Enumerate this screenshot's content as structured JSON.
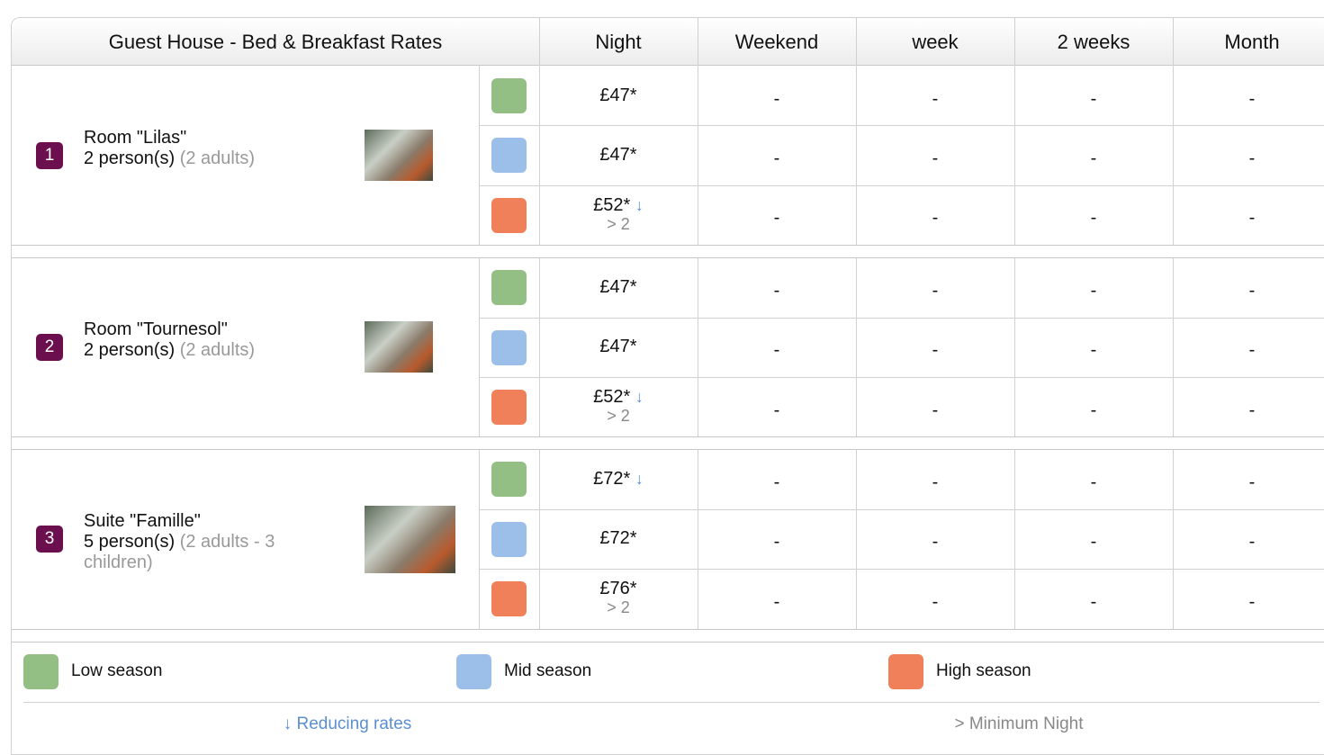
{
  "header": {
    "title": "Guest House - Bed & Breakfast Rates",
    "columns": [
      "Night",
      "Weekend",
      "week",
      "2 weeks",
      "Month"
    ]
  },
  "rooms": [
    {
      "number": "1",
      "name": "Room \"Lilas\"",
      "capacity": "2 person(s)",
      "detail": "(2 adults)",
      "rates": [
        {
          "night": "£47*",
          "others": [
            "-",
            "-",
            "-",
            "-"
          ]
        },
        {
          "night": "£47*",
          "others": [
            "-",
            "-",
            "-",
            "-"
          ]
        },
        {
          "night": "£52*",
          "reducing": "↓",
          "minimum": "> 2",
          "others": [
            "-",
            "-",
            "-",
            "-"
          ]
        }
      ]
    },
    {
      "number": "2",
      "name": "Room \"Tournesol\"",
      "capacity": "2 person(s)",
      "detail": "(2 adults)",
      "rates": [
        {
          "night": "£47*",
          "others": [
            "-",
            "-",
            "-",
            "-"
          ]
        },
        {
          "night": "£47*",
          "others": [
            "-",
            "-",
            "-",
            "-"
          ]
        },
        {
          "night": "£52*",
          "reducing": "↓",
          "minimum": "> 2",
          "others": [
            "-",
            "-",
            "-",
            "-"
          ]
        }
      ]
    },
    {
      "number": "3",
      "name": "Suite \"Famille\"",
      "capacity": "5 person(s)",
      "detail": "(2 adults - 3 children)",
      "rates": [
        {
          "night": "£72*",
          "reducing": "↓",
          "others": [
            "-",
            "-",
            "-",
            "-"
          ]
        },
        {
          "night": "£72*",
          "others": [
            "-",
            "-",
            "-",
            "-"
          ]
        },
        {
          "night": "£76*",
          "minimum": "> 2",
          "others": [
            "-",
            "-",
            "-",
            "-"
          ]
        }
      ]
    }
  ],
  "legend": {
    "seasons": [
      {
        "label": "Low season",
        "color": "#93bf85"
      },
      {
        "label": "Mid season",
        "color": "#9bbfe8"
      },
      {
        "label": "High season",
        "color": "#f0805a"
      }
    ],
    "notes": {
      "reducing": "↓ Reducing rates",
      "minimum": "> Minimum Night"
    }
  }
}
